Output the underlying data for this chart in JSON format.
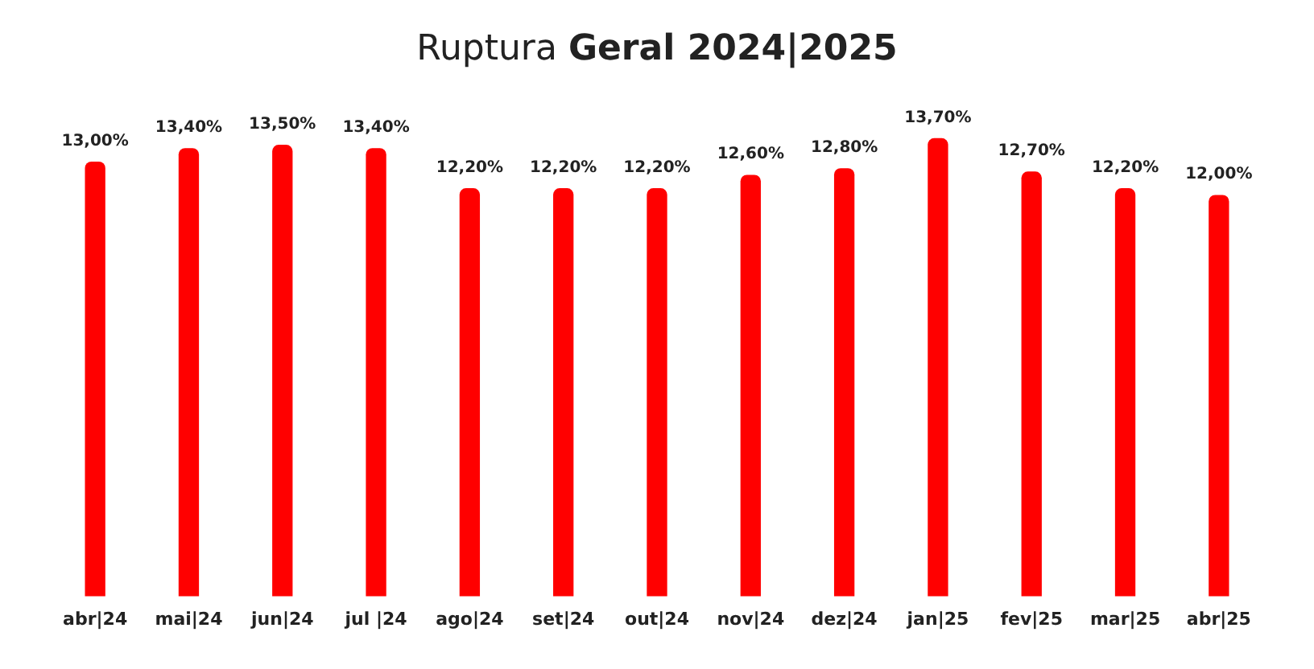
{
  "chart_data": {
    "type": "bar",
    "title": "Ruptura Geral 2024|2025",
    "categories": [
      "abr|24",
      "mai|24",
      "jun|24",
      "jul |24",
      "ago|24",
      "set|24",
      "out|24",
      "nov|24",
      "dez|24",
      "jan|25",
      "fev|25",
      "mar|25",
      "abr|25"
    ],
    "values": [
      13.0,
      13.4,
      13.5,
      13.4,
      12.2,
      12.2,
      12.2,
      12.6,
      12.8,
      13.7,
      12.7,
      12.2,
      12.0
    ],
    "value_labels": [
      "13,00%",
      "13,40%",
      "13,50%",
      "13,40%",
      "12,20%",
      "12,20%",
      "12,20%",
      "12,60%",
      "12,80%",
      "13,70%",
      "12,70%",
      "12,20%",
      "12,00%"
    ],
    "color": "#ff0000",
    "tick_labels": "x",
    "grid": false,
    "legend": false
  }
}
